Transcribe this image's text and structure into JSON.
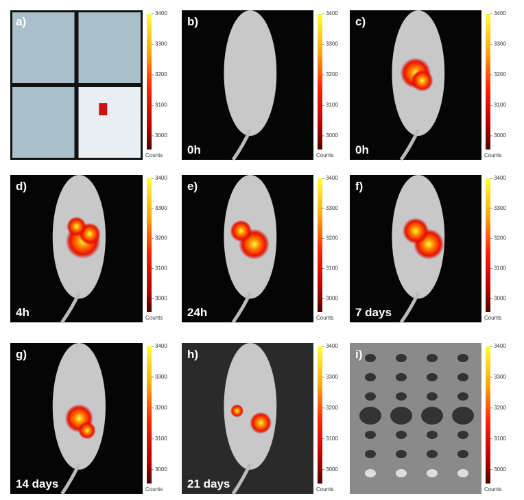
{
  "colorbar": {
    "ticks": [
      3000,
      3100,
      3200,
      3300,
      3400
    ],
    "lim": [
      2955,
      3400
    ],
    "label": "Counts"
  },
  "panels": [
    {
      "label": "a)"
    },
    {
      "label": "b)",
      "time": "0h"
    },
    {
      "label": "c)",
      "time": "0h"
    },
    {
      "label": "d)",
      "time": "4h"
    },
    {
      "label": "e)",
      "time": "24h"
    },
    {
      "label": "f)",
      "time": "7 days"
    },
    {
      "label": "g)",
      "time": "14 days"
    },
    {
      "label": "h)",
      "time": "21 days"
    },
    {
      "label": "i)"
    }
  ]
}
